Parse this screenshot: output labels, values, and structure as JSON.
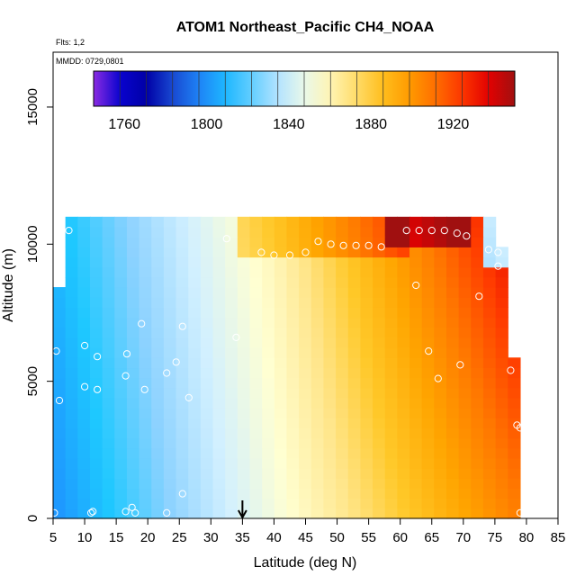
{
  "chart_data": {
    "type": "heatmap",
    "title": "ATOM1 Northeast_Pacific CH4_NOAA",
    "flights_label": "Flts: 1,2",
    "dates_label": "MMDD: 0729,0801",
    "xlabel": "Latitude (deg N)",
    "ylabel": "Altitude (m)",
    "xlim": [
      5,
      85
    ],
    "ylim": [
      0,
      17000
    ],
    "x_ticks": [
      5,
      10,
      15,
      20,
      25,
      30,
      35,
      40,
      45,
      50,
      55,
      60,
      65,
      70,
      75,
      80,
      85
    ],
    "y_ticks": [
      0,
      5000,
      10000,
      15000
    ],
    "colorbar": {
      "min": 1745,
      "max": 1950,
      "ticks": [
        1760,
        1800,
        1840,
        1880,
        1920
      ],
      "colors": [
        "#8a2be2",
        "#0000cd",
        "#0000a0",
        "#1e5adc",
        "#1e90ff",
        "#1ec8ff",
        "#8cd2ff",
        "#d2f0ff",
        "#ffffd2",
        "#ffe68c",
        "#ffc828",
        "#ffa500",
        "#ff7800",
        "#ff3c00",
        "#e60000",
        "#a01010"
      ]
    },
    "field": {
      "lat_range": [
        5,
        79
      ],
      "alt_top": 11000,
      "annotation_arrow_lat": 35
    },
    "series": [
      {
        "name": "",
        "points": [
          {
            "lat": 5.2,
            "alt": 200
          },
          {
            "lat": 11.0,
            "alt": 200
          },
          {
            "lat": 11.3,
            "alt": 250
          },
          {
            "lat": 16.5,
            "alt": 250
          },
          {
            "lat": 17.5,
            "alt": 400
          },
          {
            "lat": 18.0,
            "alt": 200
          },
          {
            "lat": 23.0,
            "alt": 200
          },
          {
            "lat": 25.5,
            "alt": 900
          },
          {
            "lat": 6.0,
            "alt": 4300
          },
          {
            "lat": 10.0,
            "alt": 4800
          },
          {
            "lat": 12.0,
            "alt": 4700
          },
          {
            "lat": 16.5,
            "alt": 5200
          },
          {
            "lat": 19.5,
            "alt": 4700
          },
          {
            "lat": 23.0,
            "alt": 5300
          },
          {
            "lat": 24.5,
            "alt": 5700
          },
          {
            "lat": 26.5,
            "alt": 4400
          },
          {
            "lat": 5.5,
            "alt": 6100
          },
          {
            "lat": 10.0,
            "alt": 6300
          },
          {
            "lat": 12.0,
            "alt": 5900
          },
          {
            "lat": 16.7,
            "alt": 6000
          },
          {
            "lat": 19.0,
            "alt": 7100
          },
          {
            "lat": 25.5,
            "alt": 7000
          },
          {
            "lat": 34.0,
            "alt": 6600
          },
          {
            "lat": 7.5,
            "alt": 10500
          },
          {
            "lat": 32.5,
            "alt": 10200
          },
          {
            "lat": 38.0,
            "alt": 9700
          },
          {
            "lat": 40.0,
            "alt": 9600
          },
          {
            "lat": 42.5,
            "alt": 9600
          },
          {
            "lat": 45.0,
            "alt": 9700
          },
          {
            "lat": 47.0,
            "alt": 10100
          },
          {
            "lat": 49.0,
            "alt": 10000
          },
          {
            "lat": 51.0,
            "alt": 9950
          },
          {
            "lat": 53.0,
            "alt": 9950
          },
          {
            "lat": 55.0,
            "alt": 9950
          },
          {
            "lat": 57.0,
            "alt": 9900
          },
          {
            "lat": 61.0,
            "alt": 10500
          },
          {
            "lat": 63.0,
            "alt": 10500
          },
          {
            "lat": 65.0,
            "alt": 10500
          },
          {
            "lat": 67.0,
            "alt": 10500
          },
          {
            "lat": 69.0,
            "alt": 10400
          },
          {
            "lat": 70.5,
            "alt": 10300
          },
          {
            "lat": 74.0,
            "alt": 9800
          },
          {
            "lat": 75.5,
            "alt": 9700
          },
          {
            "lat": 75.5,
            "alt": 9200
          },
          {
            "lat": 62.5,
            "alt": 8500
          },
          {
            "lat": 72.5,
            "alt": 8100
          },
          {
            "lat": 64.5,
            "alt": 6100
          },
          {
            "lat": 66.0,
            "alt": 5100
          },
          {
            "lat": 69.5,
            "alt": 5600
          },
          {
            "lat": 77.5,
            "alt": 5400
          },
          {
            "lat": 78.5,
            "alt": 3400
          },
          {
            "lat": 79.0,
            "alt": 3300
          },
          {
            "lat": 79.0,
            "alt": 200
          }
        ]
      }
    ]
  }
}
